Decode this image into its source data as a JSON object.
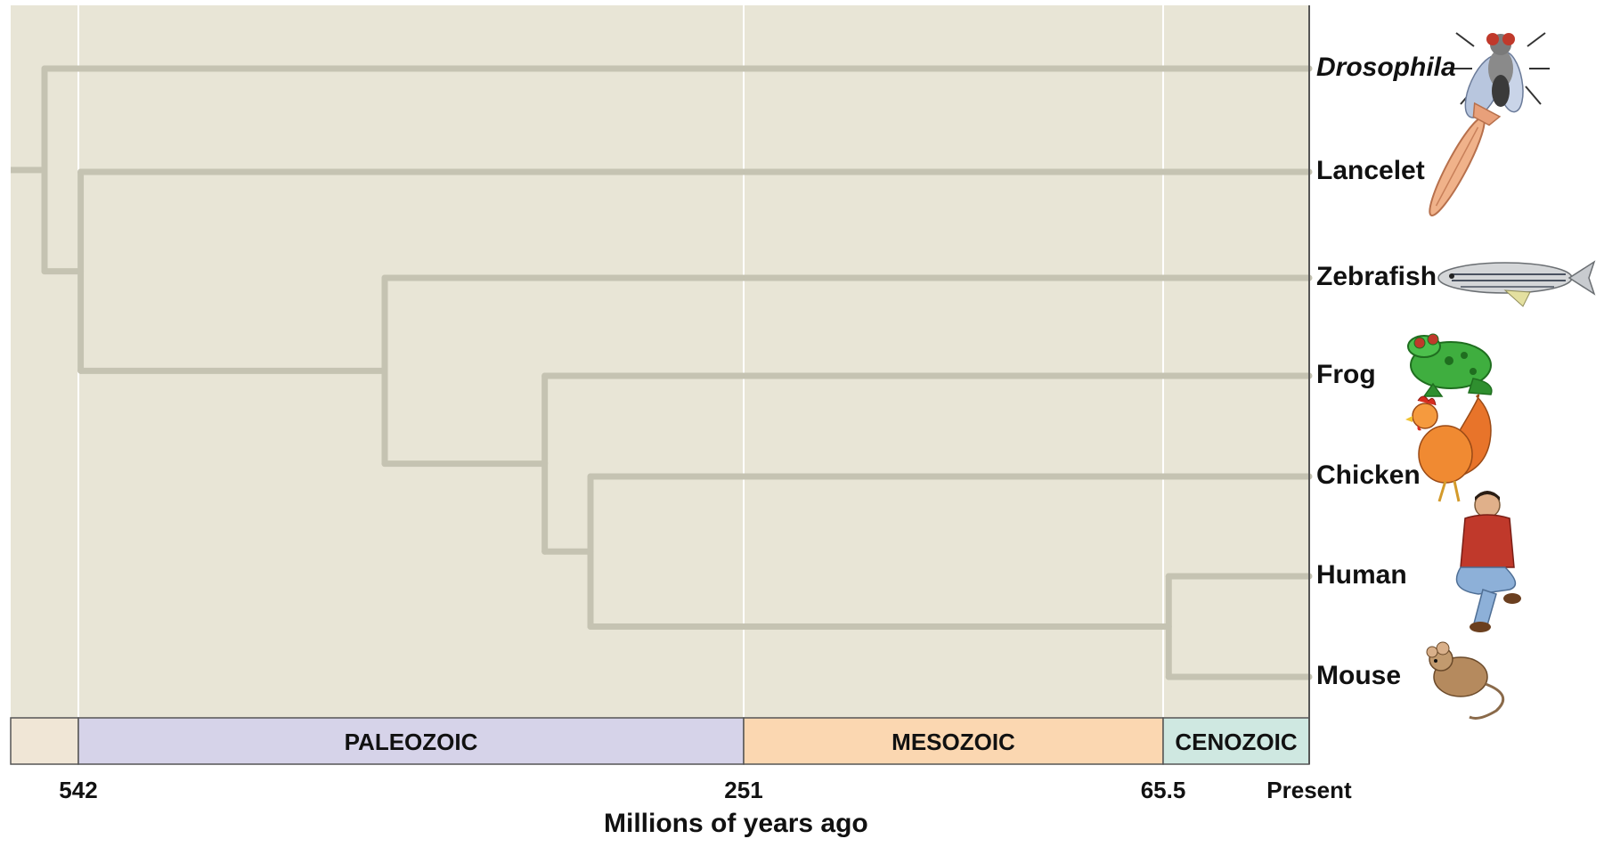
{
  "diagram": {
    "type": "phylogenetic-tree",
    "axis_title": "Millions of years ago",
    "ticks": [
      {
        "label": "542",
        "mya": 542
      },
      {
        "label": "251",
        "mya": 251
      },
      {
        "label": "65.5",
        "mya": 65.5
      },
      {
        "label": "Present",
        "mya": 0
      }
    ],
    "eras": [
      {
        "name": "",
        "from_mya": 572,
        "to_mya": 542,
        "color": "#f0e6d6"
      },
      {
        "name": "PALEOZOIC",
        "from_mya": 542,
        "to_mya": 251,
        "color": "#d6d3e9"
      },
      {
        "name": "MESOZOIC",
        "from_mya": 251,
        "to_mya": 65.5,
        "color": "#fbd7b1"
      },
      {
        "name": "CENOZOIC",
        "from_mya": 65.5,
        "to_mya": 0,
        "color": "#cfe8e1"
      }
    ],
    "taxa": [
      {
        "name": "Drosophila",
        "italic": true,
        "icon": "fruit-fly-icon"
      },
      {
        "name": "Lancelet",
        "italic": false,
        "icon": "lancelet-icon"
      },
      {
        "name": "Zebrafish",
        "italic": false,
        "icon": "zebrafish-icon"
      },
      {
        "name": "Frog",
        "italic": false,
        "icon": "frog-icon"
      },
      {
        "name": "Chicken",
        "italic": false,
        "icon": "chicken-icon"
      },
      {
        "name": "Human",
        "italic": false,
        "icon": "human-icon"
      },
      {
        "name": "Mouse",
        "italic": false,
        "icon": "mouse-icon"
      }
    ],
    "nodes": [
      {
        "id": "n1",
        "mya": 557,
        "children": [
          "Drosophila",
          "n2"
        ]
      },
      {
        "id": "n2",
        "mya": 541,
        "children": [
          "Lancelet",
          "n3"
        ]
      },
      {
        "id": "n3",
        "mya": 408,
        "children": [
          "Zebrafish",
          "n4"
        ]
      },
      {
        "id": "n4",
        "mya": 338,
        "children": [
          "Frog",
          "n5"
        ]
      },
      {
        "id": "n5",
        "mya": 318,
        "children": [
          "Chicken",
          "n6"
        ]
      },
      {
        "id": "n6",
        "mya": 63,
        "children": [
          "Human",
          "Mouse"
        ]
      }
    ],
    "root_stem_mya": 572,
    "colors": {
      "background": "#e8e5d6",
      "branch": "#c5c3b2",
      "gridline": "#ffffff",
      "axis_line": "#555555"
    }
  }
}
